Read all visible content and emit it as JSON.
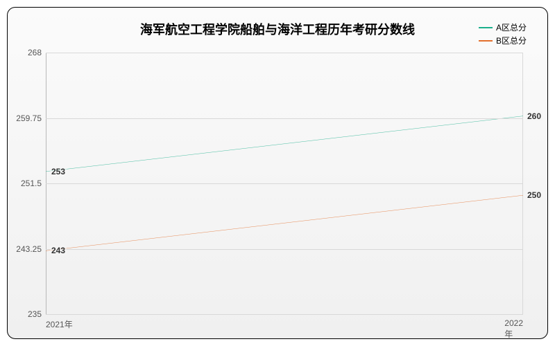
{
  "chart": {
    "type": "line",
    "title": "海军航空工程学院船舶与海洋工程历年考研分数线",
    "title_fontsize": 18,
    "background_gradient": [
      "#fbfbfb",
      "#f0f0f0"
    ],
    "border_color": "#000000",
    "border_radius": 12,
    "grid_color": "#d8d8d8",
    "axis_color": "#b8b8b8",
    "label_color": "#555555",
    "point_label_color": "#333333",
    "ylim": [
      235,
      268
    ],
    "yticks": [
      235,
      243.25,
      251.5,
      259.75,
      268
    ],
    "ytick_labels": [
      "235",
      "243.25",
      "251.5",
      "259.75",
      "268"
    ],
    "x_categories": [
      "2021年",
      "2022年"
    ],
    "legend_position": "top-right",
    "series": [
      {
        "name": "A区总分",
        "color": "#1aaf8b",
        "line_width": 1.5,
        "values": [
          253,
          260
        ],
        "labels": [
          "253",
          "260"
        ]
      },
      {
        "name": "B区总分",
        "color": "#e3702d",
        "line_width": 1.5,
        "values": [
          243,
          250
        ],
        "labels": [
          "243",
          "250"
        ]
      }
    ]
  }
}
